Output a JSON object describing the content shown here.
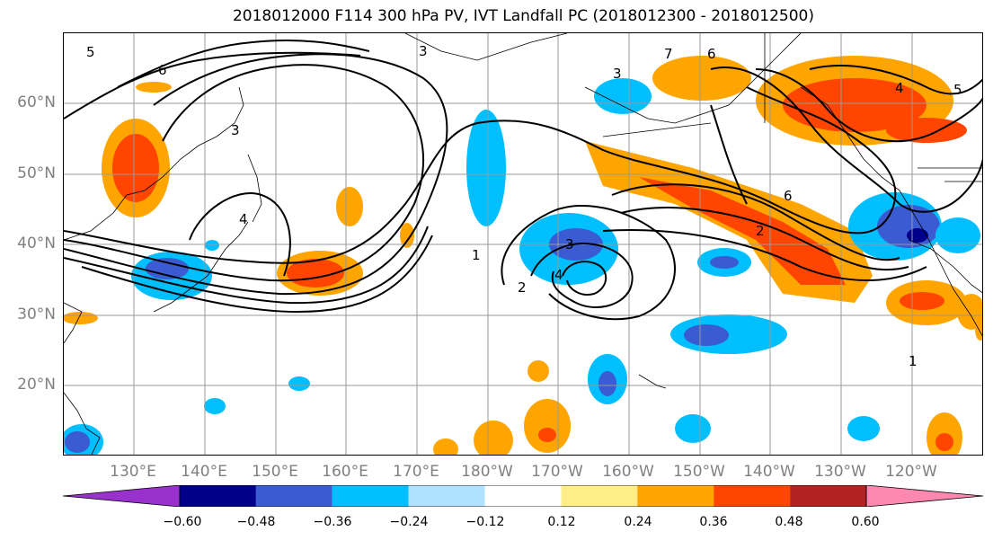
{
  "title": "2018012000 F114 300 hPa PV, IVT Landfall PC (2018012300 - 2018012500)",
  "map": {
    "projection": "equirectangular",
    "lon_range": [
      "120°E",
      "110°W"
    ],
    "lat_range": [
      "10°N",
      "70°N"
    ],
    "grid": true,
    "lat_labels": [
      "60°N",
      "50°N",
      "40°N",
      "30°N",
      "20°N"
    ],
    "lon_labels": [
      "130°E",
      "140°E",
      "150°E",
      "160°E",
      "170°E",
      "180°W",
      "170°W",
      "160°W",
      "150°W",
      "140°W",
      "130°W",
      "120°W"
    ],
    "contour_labels": [
      "5",
      "6",
      "3",
      "3",
      "3",
      "4",
      "1",
      "2",
      "3",
      "4",
      "7",
      "6",
      "4",
      "5",
      "6",
      "2",
      "1"
    ]
  },
  "colorbar": {
    "tick_labels": [
      "−0.60",
      "−0.48",
      "−0.36",
      "−0.24",
      "−0.12",
      "0.12",
      "0.24",
      "0.36",
      "0.48",
      "0.60"
    ],
    "colors": [
      "#9932cc",
      "#00008b",
      "#3a5bd1",
      "#00bfff",
      "#b0e2ff",
      "#ffffff",
      "#ffee88",
      "#ffa500",
      "#ff4500",
      "#b22222",
      "#ff88b0"
    ],
    "extend": "both"
  },
  "fill_colors": {
    "pos_light": "#ffa500",
    "pos_mid": "#ff4500",
    "neg_light": "#00bfff",
    "neg_mid": "#3a5bd1",
    "neg_dark": "#00008b"
  }
}
